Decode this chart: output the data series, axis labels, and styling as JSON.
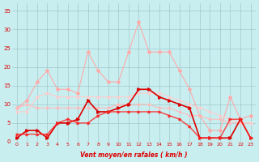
{
  "x": [
    0,
    1,
    2,
    3,
    4,
    5,
    6,
    7,
    8,
    9,
    10,
    11,
    12,
    13,
    14,
    15,
    16,
    17,
    18,
    19,
    20,
    21,
    22,
    23
  ],
  "series1_lightest_pink": [
    9,
    11,
    16,
    19,
    14,
    14,
    13,
    24,
    19,
    16,
    16,
    24,
    32,
    24,
    24,
    24,
    19,
    14,
    7,
    3,
    3,
    12,
    6,
    7
  ],
  "series2_light_pink_decreasing": [
    9,
    10,
    9,
    9,
    9,
    9,
    9,
    9,
    9,
    9,
    10,
    10,
    10,
    10,
    9,
    9,
    8,
    7,
    7,
    6,
    6,
    5,
    5,
    5
  ],
  "series3_light_pink_increasing": [
    8,
    8,
    12,
    13,
    12,
    12,
    12,
    12,
    12,
    12,
    12,
    12,
    13,
    13,
    13,
    12,
    11,
    10,
    9,
    8,
    7,
    6,
    5,
    5
  ],
  "series4_dark_red_main": [
    1,
    3,
    3,
    1,
    5,
    5,
    6,
    11,
    8,
    8,
    9,
    10,
    14,
    14,
    12,
    11,
    10,
    9,
    1,
    1,
    1,
    1,
    6,
    1
  ],
  "series5_dark_red_flat": [
    2,
    2,
    2,
    2,
    5,
    6,
    5,
    5,
    7,
    8,
    8,
    8,
    8,
    8,
    8,
    7,
    6,
    4,
    1,
    1,
    1,
    6,
    6,
    1
  ],
  "background_color": "#c8eef0",
  "grid_color": "#a0c8cc",
  "color_lightest": "#ffaaaa",
  "color_light": "#ff8888",
  "color_mid_fade": "#ffbbbb",
  "color_dark_red": "#dd0000",
  "color_dark_red2": "#ff2222",
  "xlabel": "Vent moyen/en rafales ( km/h )",
  "ylabel_values": [
    0,
    5,
    10,
    15,
    20,
    25,
    30,
    35
  ],
  "xlim": [
    -0.5,
    23.5
  ],
  "ylim": [
    0,
    37
  ]
}
